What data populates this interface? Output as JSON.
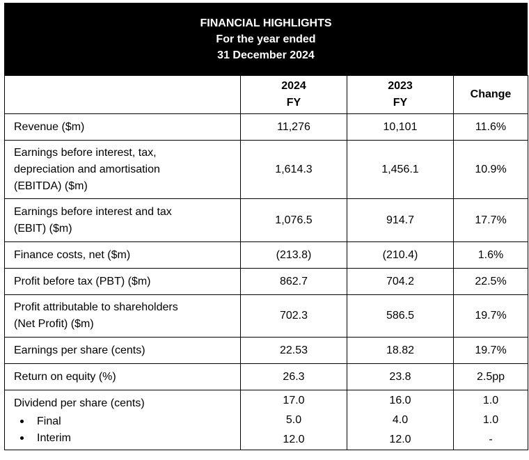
{
  "header": {
    "title": "FINANCIAL HIGHLIGHTS",
    "line2": "For the year ended",
    "line3": "31 December 2024"
  },
  "columns": {
    "y2024_year": "2024",
    "y2024_fy": "FY",
    "y2023_year": "2023",
    "y2023_fy": "FY",
    "change": "Change"
  },
  "rows": [
    {
      "label_lines": [
        "Revenue ($m)"
      ],
      "v2024": "11,276",
      "v2023": "10,101",
      "change": "11.6%"
    },
    {
      "label_lines": [
        "Earnings before interest, tax,",
        "depreciation and amortisation",
        "(EBITDA) ($m)"
      ],
      "v2024": "1,614.3",
      "v2023": "1,456.1",
      "change": "10.9%"
    },
    {
      "label_lines": [
        "Earnings before interest and tax",
        "(EBIT) ($m)"
      ],
      "v2024": "1,076.5",
      "v2023": "914.7",
      "change": "17.7%"
    },
    {
      "label_lines": [
        "Finance costs, net ($m)"
      ],
      "v2024": "(213.8)",
      "v2023": "(210.4)",
      "change": "1.6%"
    },
    {
      "label_lines": [
        "Profit before tax (PBT) ($m)"
      ],
      "v2024": "862.7",
      "v2023": "704.2",
      "change": "22.5%"
    },
    {
      "label_lines": [
        "Profit attributable to shareholders",
        "(Net Profit) ($m)"
      ],
      "v2024": "702.3",
      "v2023": "586.5",
      "change": "19.7%"
    },
    {
      "label_lines": [
        "Earnings per share (cents)"
      ],
      "v2024": "22.53",
      "v2023": "18.82",
      "change": "19.7%"
    },
    {
      "label_lines": [
        "Return on equity (%)"
      ],
      "v2024": "26.3",
      "v2023": "23.8",
      "change": "2.5pp"
    }
  ],
  "dividend": {
    "label": "Dividend per share (cents)",
    "final_label": "Final",
    "interim_label": "Interim",
    "total_2024": "17.0",
    "final_2024": "5.0",
    "interim_2024": "12.0",
    "total_2023": "16.0",
    "final_2023": "4.0",
    "interim_2023": "12.0",
    "total_change": "1.0",
    "final_change": "1.0",
    "interim_change": "-"
  }
}
